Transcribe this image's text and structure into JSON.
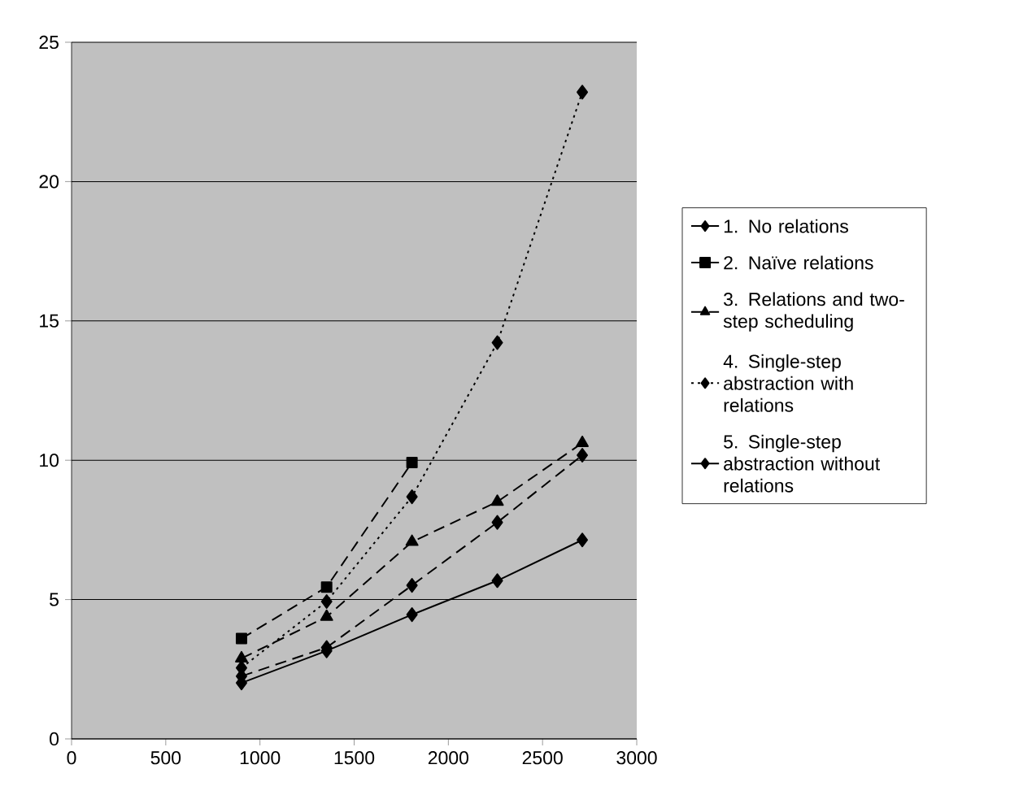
{
  "chart_data": {
    "type": "line",
    "x": [
      902,
      1354,
      1807,
      2260,
      2711
    ],
    "series": [
      {
        "name": "1. No relations",
        "color": "#000000",
        "line_style": "dashed",
        "marker": "diamond",
        "values": [
          2.25,
          3.28,
          5.51,
          7.77,
          10.18
        ]
      },
      {
        "name": "2. Naïve relations",
        "color": "#000000",
        "line_style": "dashed",
        "marker": "square",
        "values": [
          3.6,
          5.45,
          9.92,
          null,
          null
        ]
      },
      {
        "name": "3. Relations and two-step scheduling",
        "color": "#000000",
        "line_style": "dashed",
        "marker": "triangle",
        "values": [
          2.89,
          4.38,
          7.07,
          8.51,
          10.62
        ]
      },
      {
        "name": "4. Single-step abstraction with relations",
        "color": "#000000",
        "line_style": "dotted",
        "marker": "diamond",
        "values": [
          2.55,
          4.93,
          8.69,
          14.22,
          23.21
        ]
      },
      {
        "name": "5. Single-step abstraction without relations",
        "color": "#000000",
        "line_style": "solid",
        "marker": "diamond",
        "values": [
          2.01,
          3.16,
          4.46,
          5.68,
          7.14
        ]
      }
    ],
    "xlim": [
      0,
      3000
    ],
    "xticks": [
      0,
      500,
      1000,
      1500,
      2000,
      2500,
      3000
    ],
    "ylim": [
      0,
      25
    ],
    "yticks": [
      0,
      5,
      10,
      15,
      20,
      25
    ],
    "grid": "y",
    "legend": "right"
  }
}
